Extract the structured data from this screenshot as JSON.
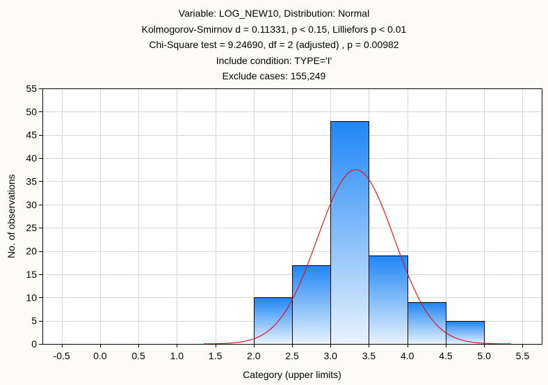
{
  "chart_data": {
    "type": "bar",
    "title_lines": [
      "Variable: LOG_NEW10, Distribution: Normal",
      "Kolmogorov-Smirnov d = 0.11331, p < 0.15, Lilliefors p < 0.01",
      "Chi-Square test = 9.24690, df = 2 (adjusted) , p = 0.00982",
      "Include condition: TYPE='I'",
      "Exclude cases: 155,249"
    ],
    "xlabel": "Category (upper limits)",
    "ylabel": "No. of observations",
    "xlim": [
      -0.75,
      5.75
    ],
    "ylim": [
      0,
      55
    ],
    "x_ticks": [
      -0.5,
      0.0,
      0.5,
      1.0,
      1.5,
      2.0,
      2.5,
      3.0,
      3.5,
      4.0,
      4.5,
      5.0,
      5.5
    ],
    "x_tick_labels": [
      "-0.5",
      "0.0",
      "0.5",
      "1.0",
      "1.5",
      "2.0",
      "2.5",
      "3.0",
      "3.5",
      "4.0",
      "4.5",
      "5.0",
      "5.5"
    ],
    "y_ticks": [
      0,
      5,
      10,
      15,
      20,
      25,
      30,
      35,
      40,
      45,
      50,
      55
    ],
    "y_tick_labels": [
      "0",
      "5",
      "10",
      "15",
      "20",
      "25",
      "30",
      "35",
      "40",
      "45",
      "50",
      "55"
    ],
    "grid": true,
    "bins": [
      {
        "lower": 2.0,
        "upper": 2.5,
        "value": 10
      },
      {
        "lower": 2.5,
        "upper": 3.0,
        "value": 17
      },
      {
        "lower": 3.0,
        "upper": 3.5,
        "value": 48
      },
      {
        "lower": 3.5,
        "upper": 4.0,
        "value": 19
      },
      {
        "lower": 4.0,
        "upper": 4.5,
        "value": 9
      },
      {
        "lower": 4.5,
        "upper": 5.0,
        "value": 5
      }
    ],
    "normal_fit": {
      "mean": 3.33,
      "sd": 0.5,
      "peak": 37.5,
      "x_range": [
        1.35,
        5.35
      ]
    },
    "colors": {
      "bar_top": "#1f86f5",
      "bar_bottom": "#e9f3fd",
      "bar_edge": "#000000",
      "curve": "#e0141e",
      "grid": "#d6d6d6",
      "plot_bg": "#ffffff"
    }
  }
}
